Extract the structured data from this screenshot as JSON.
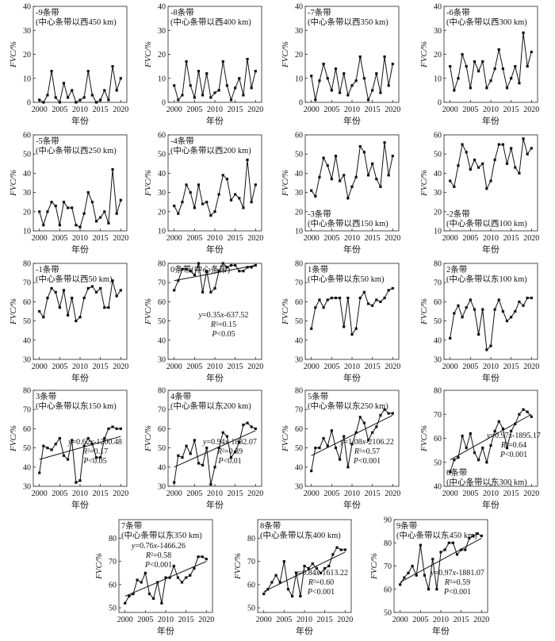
{
  "figure": {
    "xlabel": "年份",
    "ylabel": "FVC/%",
    "x_ticks": [
      2000,
      2005,
      2010,
      2015,
      2020
    ]
  },
  "chart_data": [
    {
      "type": "line",
      "title": [
        "-9条带",
        "(中心条带以西450 km)"
      ],
      "ylim": [
        0,
        40
      ],
      "yticks": [
        0,
        10,
        20,
        30,
        40
      ],
      "x": [
        2000,
        2001,
        2002,
        2003,
        2004,
        2005,
        2006,
        2007,
        2008,
        2009,
        2010,
        2011,
        2012,
        2013,
        2014,
        2015,
        2016,
        2017,
        2018,
        2019,
        2020
      ],
      "values": [
        1,
        0,
        3,
        13,
        2,
        0,
        8,
        2,
        5,
        0,
        1,
        2,
        13,
        3,
        0,
        1,
        5,
        1,
        15,
        5,
        10
      ],
      "trend": null
    },
    {
      "type": "line",
      "title": [
        "-8条带",
        "(中心条带以西400 km)"
      ],
      "ylim": [
        0,
        40
      ],
      "yticks": [
        0,
        10,
        20,
        30,
        40
      ],
      "x": [
        2000,
        2001,
        2002,
        2003,
        2004,
        2005,
        2006,
        2007,
        2008,
        2009,
        2010,
        2011,
        2012,
        2013,
        2014,
        2015,
        2016,
        2017,
        2018,
        2019,
        2020
      ],
      "values": [
        7,
        1,
        3,
        17,
        7,
        2,
        13,
        3,
        12,
        2,
        4,
        5,
        17,
        7,
        1,
        6,
        10,
        3,
        18,
        6,
        13
      ],
      "trend": null
    },
    {
      "type": "line",
      "title": [
        "-7条带",
        "(中心条带以西350 km)"
      ],
      "ylim": [
        0,
        40
      ],
      "yticks": [
        0,
        10,
        20,
        30,
        40
      ],
      "x": [
        2000,
        2001,
        2002,
        2003,
        2004,
        2005,
        2006,
        2007,
        2008,
        2009,
        2010,
        2011,
        2012,
        2013,
        2014,
        2015,
        2016,
        2017,
        2018,
        2019,
        2020
      ],
      "values": [
        11,
        1,
        9,
        16,
        10,
        5,
        14,
        4,
        12,
        3,
        7,
        9,
        19,
        10,
        1,
        5,
        12,
        4,
        19,
        7,
        16
      ],
      "trend": null
    },
    {
      "type": "line",
      "title": [
        "-6条带",
        "(中心条带以西300 km)"
      ],
      "ylim": [
        0,
        40
      ],
      "yticks": [
        0,
        10,
        20,
        30,
        40
      ],
      "x": [
        2000,
        2001,
        2002,
        2003,
        2004,
        2005,
        2006,
        2007,
        2008,
        2009,
        2010,
        2011,
        2012,
        2013,
        2014,
        2015,
        2016,
        2017,
        2018,
        2019,
        2020
      ],
      "values": [
        15,
        5,
        10,
        20,
        15,
        6,
        17,
        13,
        17,
        6,
        9,
        14,
        22,
        14,
        6,
        10,
        15,
        8,
        29,
        15,
        21
      ],
      "trend": null
    },
    {
      "type": "line",
      "title": [
        "-5条带",
        "(中心条带以西250 km)"
      ],
      "ylim": [
        10,
        60
      ],
      "yticks": [
        10,
        20,
        30,
        40,
        50,
        60
      ],
      "x": [
        2000,
        2001,
        2002,
        2003,
        2004,
        2005,
        2006,
        2007,
        2008,
        2009,
        2010,
        2011,
        2012,
        2013,
        2014,
        2015,
        2016,
        2017,
        2018,
        2019,
        2020
      ],
      "values": [
        20,
        13,
        20,
        25,
        23,
        13,
        25,
        22,
        22,
        13,
        12,
        19,
        30,
        25,
        15,
        17,
        20,
        14,
        42,
        19,
        26
      ],
      "trend": null
    },
    {
      "type": "line",
      "title": [
        "-4条带",
        "(中心条带以西200 km)"
      ],
      "ylim": [
        10,
        60
      ],
      "yticks": [
        10,
        20,
        30,
        40,
        50,
        60
      ],
      "x": [
        2000,
        2001,
        2002,
        2003,
        2004,
        2005,
        2006,
        2007,
        2008,
        2009,
        2010,
        2011,
        2012,
        2013,
        2014,
        2015,
        2016,
        2017,
        2018,
        2019,
        2020
      ],
      "values": [
        23,
        19,
        25,
        34,
        30,
        22,
        34,
        24,
        25,
        18,
        20,
        29,
        39,
        37,
        26,
        29,
        27,
        22,
        47,
        25,
        34
      ],
      "trend": null
    },
    {
      "type": "line",
      "title": [
        "-3条带",
        "(中心条带以西150 km)"
      ],
      "title_pos": "bottom",
      "ylim": [
        10,
        60
      ],
      "yticks": [
        10,
        20,
        30,
        40,
        50,
        60
      ],
      "x": [
        2000,
        2001,
        2002,
        2003,
        2004,
        2005,
        2006,
        2007,
        2008,
        2009,
        2010,
        2011,
        2012,
        2013,
        2014,
        2015,
        2016,
        2017,
        2018,
        2019,
        2020
      ],
      "values": [
        31,
        28,
        38,
        48,
        44,
        37,
        49,
        36,
        39,
        27,
        33,
        38,
        54,
        51,
        39,
        45,
        37,
        33,
        56,
        39,
        49
      ],
      "trend": null
    },
    {
      "type": "line",
      "title": [
        "-2条带",
        "(中心条带以西100 km)"
      ],
      "title_pos": "bottom",
      "ylim": [
        10,
        60
      ],
      "yticks": [
        10,
        20,
        30,
        40,
        50,
        60
      ],
      "x": [
        2000,
        2001,
        2002,
        2003,
        2004,
        2005,
        2006,
        2007,
        2008,
        2009,
        2010,
        2011,
        2012,
        2013,
        2014,
        2015,
        2016,
        2017,
        2018,
        2019,
        2020
      ],
      "values": [
        36,
        33,
        44,
        55,
        51,
        42,
        47,
        43,
        45,
        32,
        36,
        47,
        55,
        55,
        45,
        53,
        43,
        40,
        58,
        50,
        53
      ],
      "trend": null
    },
    {
      "type": "line",
      "title": [
        "-1条带",
        "(中心条带以西50 km)"
      ],
      "ylim": [
        30,
        80
      ],
      "yticks": [
        30,
        40,
        50,
        60,
        70,
        80
      ],
      "x": [
        2000,
        2001,
        2002,
        2003,
        2004,
        2005,
        2006,
        2007,
        2008,
        2009,
        2010,
        2011,
        2012,
        2013,
        2014,
        2015,
        2016,
        2017,
        2018,
        2019,
        2020
      ],
      "values": [
        55,
        52,
        62,
        67,
        65,
        57,
        66,
        53,
        62,
        50,
        52,
        62,
        67,
        68,
        65,
        67,
        57,
        57,
        71,
        63,
        66
      ],
      "trend": null
    },
    {
      "type": "line",
      "title": [
        "0条带(中心条带)"
      ],
      "ylim": [
        30,
        80
      ],
      "yticks": [
        30,
        40,
        50,
        60,
        70,
        80
      ],
      "x": [
        2000,
        2001,
        2002,
        2003,
        2004,
        2005,
        2006,
        2007,
        2008,
        2009,
        2010,
        2011,
        2012,
        2013,
        2014,
        2015,
        2016,
        2017,
        2018,
        2019,
        2020
      ],
      "values": [
        66,
        71,
        77,
        77,
        76,
        74,
        80,
        65,
        76,
        65,
        67,
        76,
        80,
        78,
        79,
        79,
        76,
        76,
        78,
        78,
        79
      ],
      "trend": {
        "start": 71,
        "end": 79
      },
      "equation": [
        "y=0.35x-637.52",
        "R²=0.15",
        "P<0.05"
      ]
    },
    {
      "type": "line",
      "title": [
        "1条带",
        "(中心条带以东50 km)"
      ],
      "ylim": [
        30,
        80
      ],
      "yticks": [
        30,
        40,
        50,
        60,
        70,
        80
      ],
      "x": [
        2000,
        2001,
        2002,
        2003,
        2004,
        2005,
        2006,
        2007,
        2008,
        2009,
        2010,
        2011,
        2012,
        2013,
        2014,
        2015,
        2016,
        2017,
        2018,
        2019,
        2020
      ],
      "values": [
        46,
        57,
        61,
        57,
        61,
        62,
        62,
        62,
        47,
        62,
        43,
        46,
        62,
        65,
        59,
        58,
        61,
        60,
        62,
        66,
        67
      ],
      "trend": null
    },
    {
      "type": "line",
      "title": [
        "2条带",
        "(中心条带以东100 km)"
      ],
      "ylim": [
        30,
        80
      ],
      "yticks": [
        30,
        40,
        50,
        60,
        70,
        80
      ],
      "x": [
        2000,
        2001,
        2002,
        2003,
        2004,
        2005,
        2006,
        2007,
        2008,
        2009,
        2010,
        2011,
        2012,
        2013,
        2014,
        2015,
        2016,
        2017,
        2018,
        2019,
        2020
      ],
      "values": [
        41,
        54,
        58,
        52,
        57,
        61,
        56,
        43,
        56,
        35,
        37,
        56,
        61,
        55,
        50,
        52,
        55,
        60,
        58,
        62,
        62
      ],
      "trend": null
    },
    {
      "type": "line",
      "title": [
        "3条带",
        "(中心条带以东150 km)"
      ],
      "ylim": [
        30,
        80
      ],
      "yticks": [
        30,
        40,
        50,
        60,
        70,
        80
      ],
      "x": [
        2000,
        2001,
        2002,
        2003,
        2004,
        2005,
        2006,
        2007,
        2008,
        2009,
        2010,
        2011,
        2012,
        2013,
        2014,
        2015,
        2016,
        2017,
        2018,
        2019,
        2020
      ],
      "values": [
        37,
        51,
        50,
        49,
        52,
        55,
        46,
        44,
        54,
        32,
        33,
        51,
        55,
        52,
        45,
        45,
        55,
        60,
        61,
        60,
        60
      ],
      "trend": {
        "start": 44,
        "end": 56
      },
      "equation": [
        "y=0.62x-1200.48",
        "R²=0.17",
        "P<0.05"
      ]
    },
    {
      "type": "line",
      "title": [
        "4条带",
        "(中心条带以东200 km)"
      ],
      "ylim": [
        30,
        80
      ],
      "yticks": [
        30,
        40,
        50,
        60,
        70,
        80
      ],
      "x": [
        2000,
        2001,
        2002,
        2003,
        2004,
        2005,
        2006,
        2007,
        2008,
        2009,
        2010,
        2011,
        2012,
        2013,
        2014,
        2015,
        2016,
        2017,
        2018,
        2019,
        2020
      ],
      "values": [
        32,
        46,
        45,
        51,
        47,
        54,
        42,
        41,
        50,
        31,
        40,
        50,
        58,
        56,
        45,
        48,
        53,
        62,
        63,
        61,
        60
      ],
      "trend": {
        "start": 40,
        "end": 59
      },
      "equation": [
        "y=0.94x-1832.07",
        "R²=0.39",
        "P<0.01"
      ]
    },
    {
      "type": "line",
      "title": [
        "5条带",
        "(中心条带以东250 km)"
      ],
      "ylim": [
        30,
        80
      ],
      "yticks": [
        30,
        40,
        50,
        60,
        70,
        80
      ],
      "x": [
        2000,
        2001,
        2002,
        2003,
        2004,
        2005,
        2006,
        2007,
        2008,
        2009,
        2010,
        2011,
        2012,
        2013,
        2014,
        2015,
        2016,
        2017,
        2018,
        2019,
        2020
      ],
      "values": [
        38,
        50,
        50,
        55,
        51,
        59,
        50,
        44,
        56,
        40,
        52,
        58,
        66,
        63,
        54,
        58,
        61,
        67,
        70,
        68,
        68
      ],
      "trend": {
        "start": 46,
        "end": 67
      },
      "equation": [
        "y=1.08x-2106.22",
        "R²=0.57",
        "P<0.001"
      ]
    },
    {
      "type": "line",
      "title": [
        "6条带",
        "(中心条带以东300 km)"
      ],
      "title_pos": "bottom",
      "ylim": [
        40,
        80
      ],
      "yticks": [
        40,
        50,
        60,
        70,
        80
      ],
      "x": [
        2000,
        2001,
        2002,
        2003,
        2004,
        2005,
        2006,
        2007,
        2008,
        2009,
        2010,
        2011,
        2012,
        2013,
        2014,
        2015,
        2016,
        2017,
        2018,
        2019,
        2020
      ],
      "values": [
        46,
        51,
        52,
        61,
        56,
        62,
        54,
        51,
        56,
        50,
        57,
        63,
        67,
        64,
        56,
        63,
        66,
        70,
        72,
        71,
        69
      ],
      "trend": {
        "start": 51,
        "end": 70
      },
      "equation": [
        "y=0.97x-1895.17",
        "R²=0.64",
        "P<0.001"
      ]
    },
    {
      "type": "line",
      "title": [
        "7条带",
        "(中心条带以东350 km)"
      ],
      "ylim": [
        48,
        88
      ],
      "yticks": [
        50,
        60,
        70,
        80
      ],
      "x": [
        2000,
        2001,
        2002,
        2003,
        2004,
        2005,
        2006,
        2007,
        2008,
        2009,
        2010,
        2011,
        2012,
        2013,
        2014,
        2015,
        2016,
        2017,
        2018,
        2019,
        2020
      ],
      "values": [
        52,
        55,
        56,
        62,
        61,
        65,
        56,
        54,
        61,
        52,
        63,
        63,
        68,
        63,
        61,
        63,
        64,
        67,
        72,
        72,
        71
      ],
      "trend": {
        "start": 55,
        "end": 70
      },
      "equation": [
        "y=0.76x-1466.26",
        "R²=0.58",
        "P<0.001"
      ]
    },
    {
      "type": "line",
      "title": [
        "8条带",
        "(中心条带以东400 km)"
      ],
      "ylim": [
        48,
        88
      ],
      "yticks": [
        50,
        60,
        70,
        80
      ],
      "x": [
        2000,
        2001,
        2002,
        2003,
        2004,
        2005,
        2006,
        2007,
        2008,
        2009,
        2010,
        2011,
        2012,
        2013,
        2014,
        2015,
        2016,
        2017,
        2018,
        2019,
        2020
      ],
      "values": [
        56,
        58,
        61,
        64,
        61,
        70,
        58,
        55,
        65,
        55,
        68,
        67,
        69,
        67,
        65,
        67,
        68,
        73,
        76,
        75,
        75
      ],
      "trend": {
        "start": 57,
        "end": 74
      },
      "equation": [
        "y=0.84x-1613.22",
        "R²=0.60",
        "P<0.001"
      ]
    },
    {
      "type": "line",
      "title": [
        "9条带",
        "(中心条带以东450 km)"
      ],
      "ylim": [
        50,
        90
      ],
      "yticks": [
        50,
        60,
        70,
        80,
        90
      ],
      "x": [
        2000,
        2001,
        2002,
        2003,
        2004,
        2005,
        2006,
        2007,
        2008,
        2009,
        2010,
        2011,
        2012,
        2013,
        2014,
        2015,
        2016,
        2017,
        2018,
        2019,
        2020
      ],
      "values": [
        62,
        65,
        67,
        70,
        66,
        79,
        66,
        60,
        73,
        60,
        76,
        77,
        80,
        80,
        75,
        77,
        77,
        82,
        83,
        84,
        83
      ],
      "trend": {
        "start": 63,
        "end": 82
      },
      "equation": [
        "y=0.97x-1881.07",
        "R²=0.59",
        "P<0.001"
      ]
    }
  ]
}
